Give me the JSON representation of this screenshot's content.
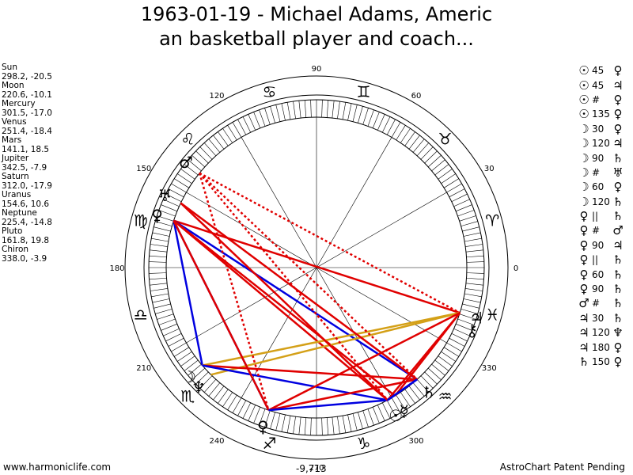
{
  "title": {
    "line1": "1963-01-19 - Michael Adams, Americ",
    "line2": "an basketball player and coach..."
  },
  "planets": [
    {
      "name": "Sun",
      "coords": "298.2, -20.5",
      "glyph": "☉",
      "angle": 298.2
    },
    {
      "name": "Moon",
      "coords": "220.6, -10.1",
      "glyph": "☽",
      "angle": 220.6
    },
    {
      "name": "Mercury",
      "coords": "301.5, -17.0",
      "glyph": "☿",
      "angle": 301.5
    },
    {
      "name": "Venus",
      "coords": "251.4, -18.4",
      "glyph": "♀",
      "angle": 251.4
    },
    {
      "name": "Mars",
      "coords": "141.1, 18.5",
      "glyph": "♂",
      "angle": 141.1
    },
    {
      "name": "Jupiter",
      "coords": "342.5, -7.9",
      "glyph": "♃",
      "angle": 342.5
    },
    {
      "name": "Saturn",
      "coords": "312.0, -17.9",
      "glyph": "♄",
      "angle": 312.0
    },
    {
      "name": "Uranus",
      "coords": "154.6, 10.6",
      "glyph": "♅",
      "angle": 154.6
    },
    {
      "name": "Neptune",
      "coords": "225.4, -14.8",
      "glyph": "♆",
      "angle": 225.4
    },
    {
      "name": "Pluto",
      "coords": "161.8, 19.8",
      "glyph": "♀",
      "angle": 161.8
    },
    {
      "name": "Chiron",
      "coords": "338.0, -3.9",
      "glyph": "⚷",
      "angle": 338.0
    }
  ],
  "aspects": [
    {
      "g1": "☉",
      "value": "45",
      "g2": "♀"
    },
    {
      "g1": "☉",
      "value": "45",
      "g2": "♃"
    },
    {
      "g1": "☉",
      "value": "#",
      "g2": "♀"
    },
    {
      "g1": "☉",
      "value": "135",
      "g2": "♀"
    },
    {
      "g1": "☽",
      "value": "30",
      "g2": "♀"
    },
    {
      "g1": "☽",
      "value": "120",
      "g2": "♃"
    },
    {
      "g1": "☽",
      "value": "90",
      "g2": "♄"
    },
    {
      "g1": "☽",
      "value": "#",
      "g2": "♅"
    },
    {
      "g1": "☽",
      "value": "60",
      "g2": "♀"
    },
    {
      "g1": "☽",
      "value": "120",
      "g2": "♄"
    },
    {
      "g1": "♀",
      "value": "||",
      "g2": "♄"
    },
    {
      "g1": "♀",
      "value": "#",
      "g2": "♂"
    },
    {
      "g1": "♀",
      "value": "90",
      "g2": "♃"
    },
    {
      "g1": "♀",
      "value": "||",
      "g2": "♄"
    },
    {
      "g1": "♀",
      "value": "60",
      "g2": "♄"
    },
    {
      "g1": "♀",
      "value": "90",
      "g2": "♄"
    },
    {
      "g1": "♂",
      "value": "#",
      "g2": "♄"
    },
    {
      "g1": "♃",
      "value": "30",
      "g2": "♄"
    },
    {
      "g1": "♃",
      "value": "120",
      "g2": "♆"
    },
    {
      "g1": "♃",
      "value": "180",
      "g2": "♀"
    },
    {
      "g1": "♄",
      "value": "150",
      "g2": "♀"
    }
  ],
  "zodiac": [
    {
      "glyph": "♈",
      "angle": 15
    },
    {
      "glyph": "♉",
      "angle": 45
    },
    {
      "glyph": "♊",
      "angle": 75
    },
    {
      "glyph": "♋",
      "angle": 105
    },
    {
      "glyph": "♌",
      "angle": 135
    },
    {
      "glyph": "♍",
      "angle": 165
    },
    {
      "glyph": "♎",
      "angle": 195
    },
    {
      "glyph": "♏",
      "angle": 225
    },
    {
      "glyph": "♐",
      "angle": 255
    },
    {
      "glyph": "♑",
      "angle": 285
    },
    {
      "glyph": "♒",
      "angle": 315
    },
    {
      "glyph": "♓",
      "angle": 345
    }
  ],
  "degree_labels": [
    "0",
    "30",
    "60",
    "90",
    "120",
    "150",
    "180",
    "210",
    "240",
    "270",
    "300",
    "330"
  ],
  "aspect_lines": [
    {
      "from": "Pluto",
      "to": "Jupiter",
      "color": "#e00000",
      "style": "solid"
    },
    {
      "from": "Pluto",
      "to": "Saturn",
      "color": "#0000e0",
      "style": "solid"
    },
    {
      "from": "Pluto",
      "to": "Venus",
      "color": "#0000e0",
      "style": "solid"
    },
    {
      "from": "Pluto",
      "to": "Sun",
      "color": "#e00000",
      "style": "solid"
    },
    {
      "from": "Pluto",
      "to": "Mercury",
      "color": "#e00000",
      "style": "solid"
    },
    {
      "from": "Pluto",
      "to": "Moon",
      "color": "#0000e0",
      "style": "solid"
    },
    {
      "from": "Moon",
      "to": "Jupiter",
      "color": "#d4a017",
      "style": "solid"
    },
    {
      "from": "Neptune",
      "to": "Jupiter",
      "color": "#d4a017",
      "style": "solid"
    },
    {
      "from": "Moon",
      "to": "Saturn",
      "color": "#e00000",
      "style": "solid"
    },
    {
      "from": "Moon",
      "to": "Sun",
      "color": "#0000e0",
      "style": "solid"
    },
    {
      "from": "Venus",
      "to": "Jupiter",
      "color": "#e00000",
      "style": "solid"
    },
    {
      "from": "Venus",
      "to": "Saturn",
      "color": "#e00000",
      "style": "solid"
    },
    {
      "from": "Venus",
      "to": "Pluto",
      "color": "#e00000",
      "style": "solid"
    },
    {
      "from": "Venus",
      "to": "Sun",
      "color": "#0000e0",
      "style": "solid"
    },
    {
      "from": "Sun",
      "to": "Saturn",
      "color": "#0000e0",
      "style": "solid"
    },
    {
      "from": "Sun",
      "to": "Jupiter",
      "color": "#e00000",
      "style": "solid"
    },
    {
      "from": "Mercury",
      "to": "Jupiter",
      "color": "#e00000",
      "style": "solid"
    },
    {
      "from": "Uranus",
      "to": "Sun",
      "color": "#e00000",
      "style": "solid"
    },
    {
      "from": "Uranus",
      "to": "Saturn",
      "color": "#e00000",
      "style": "solid"
    },
    {
      "from": "Mars",
      "to": "Venus",
      "color": "#e00000",
      "style": "dotted"
    },
    {
      "from": "Mars",
      "to": "Saturn",
      "color": "#e00000",
      "style": "dotted"
    },
    {
      "from": "Mars",
      "to": "Sun",
      "color": "#e00000",
      "style": "dotted"
    },
    {
      "from": "Mars",
      "to": "Jupiter",
      "color": "#e00000",
      "style": "dotted"
    },
    {
      "from": "Sun",
      "to": "Saturn",
      "color": "#0000e0",
      "style": "solid"
    }
  ],
  "bottom_value": "-9,713",
  "footer": {
    "left": "www.harmoniclife.com",
    "right": "AstroChart Patent Pending"
  },
  "colors": {
    "red": "#e00000",
    "blue": "#0000e0",
    "gold": "#d4a017"
  }
}
